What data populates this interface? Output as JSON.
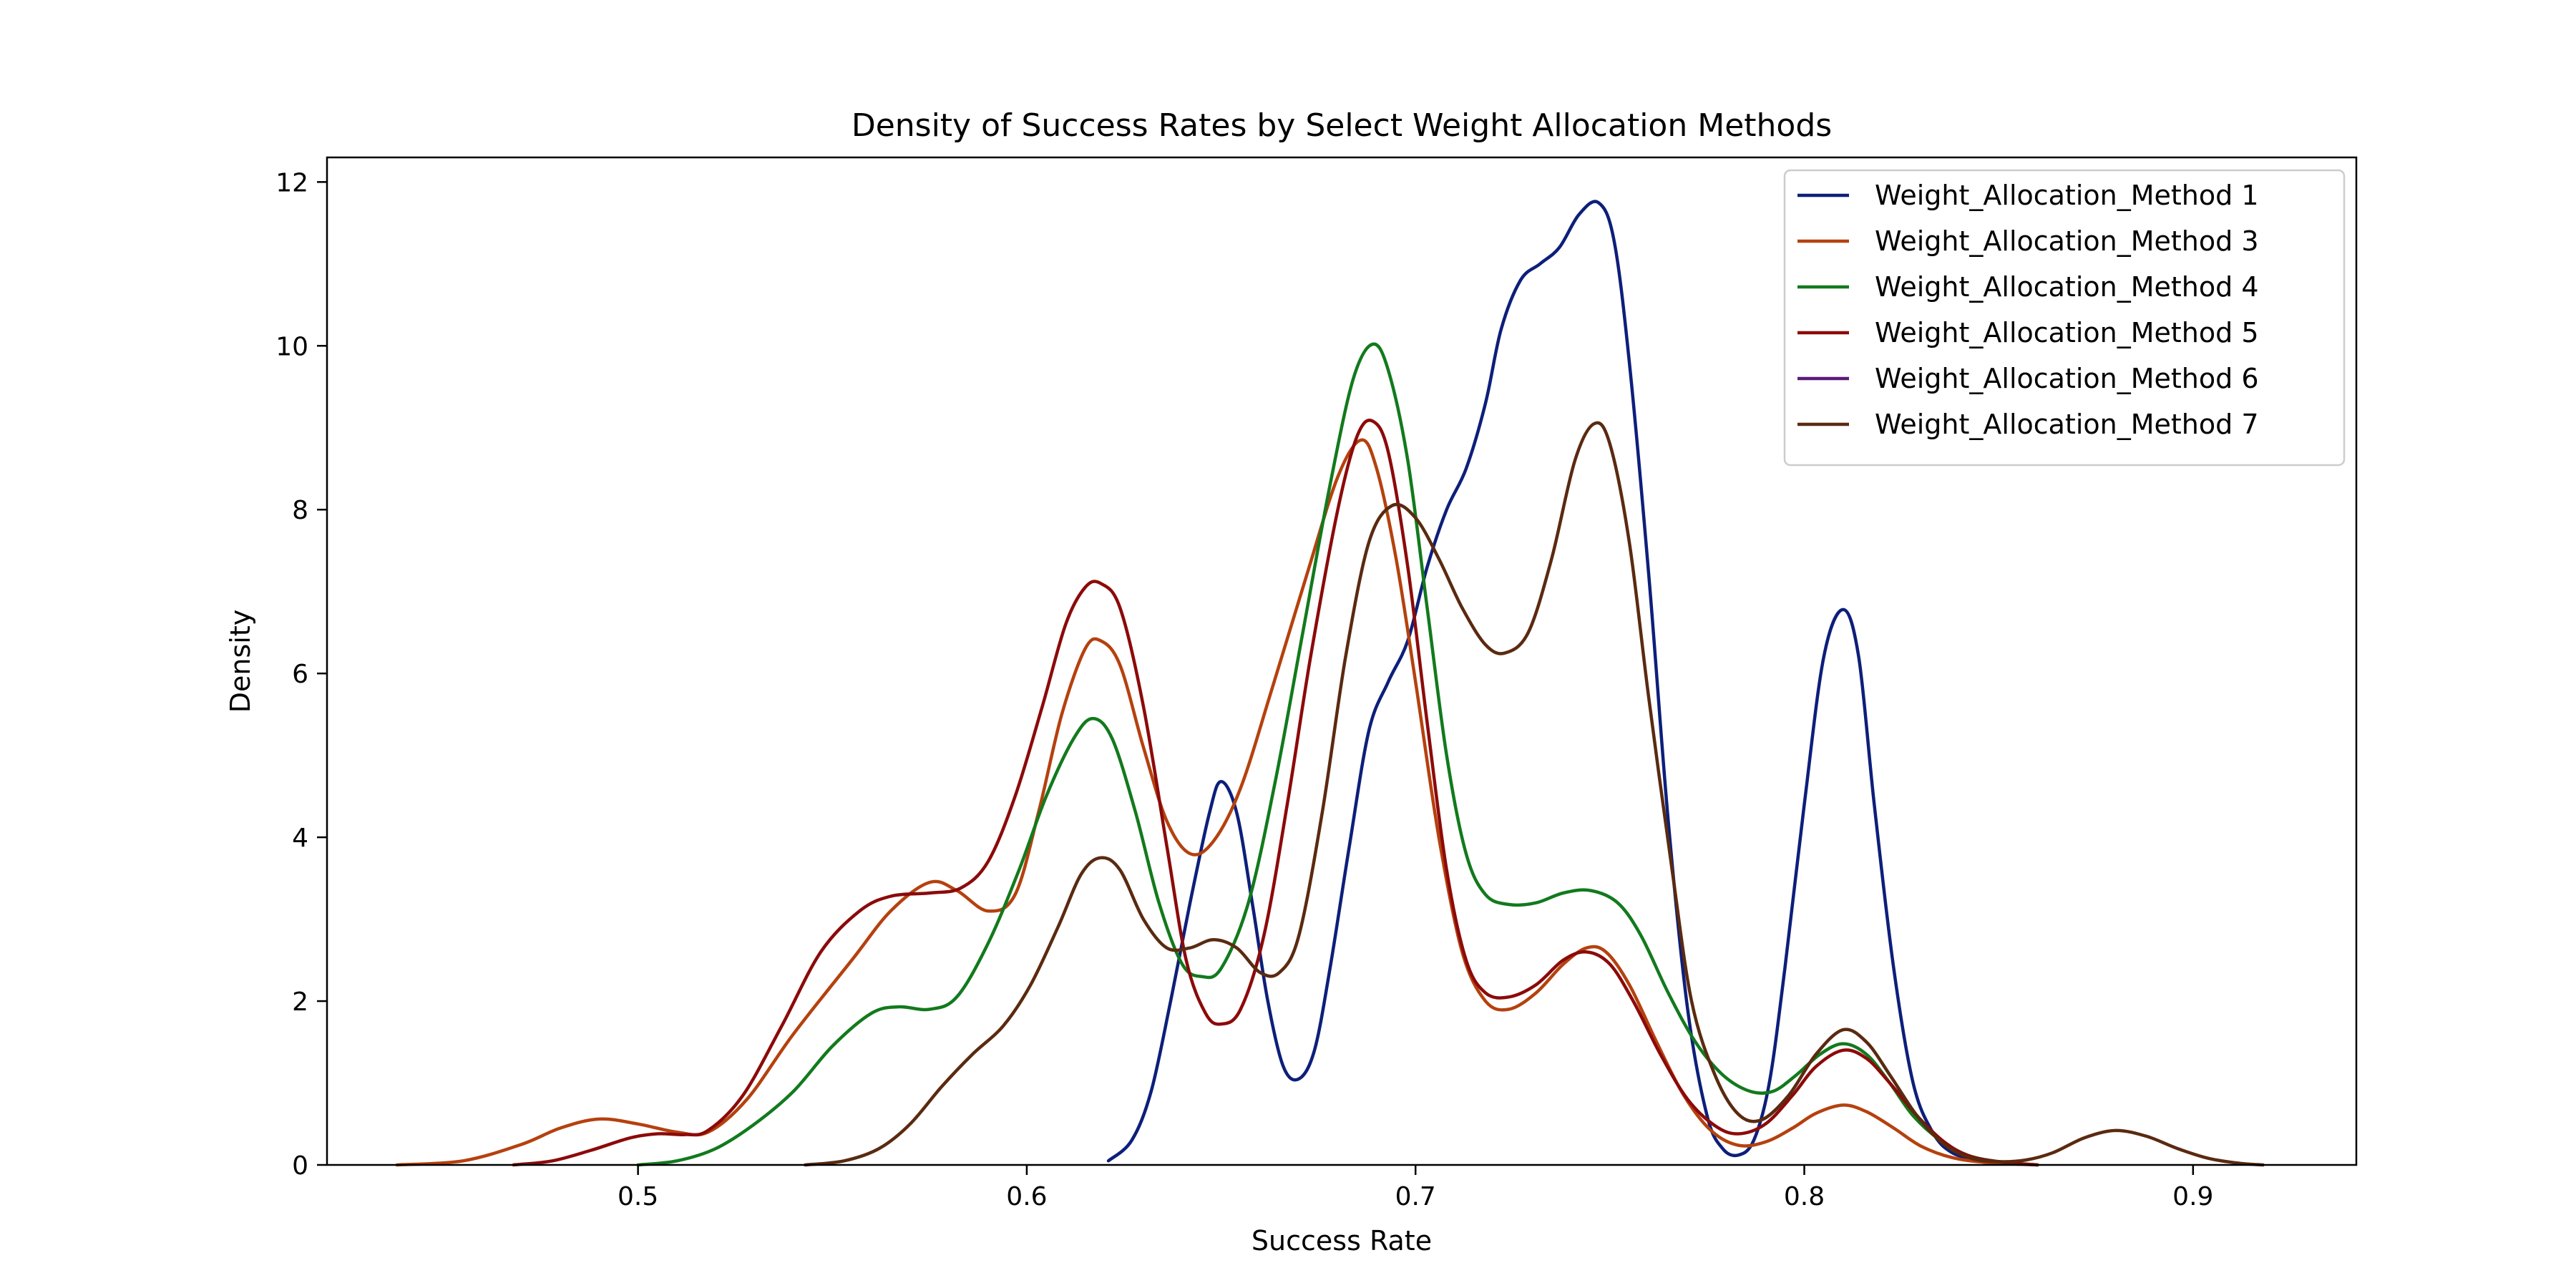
{
  "chart_data": {
    "type": "line",
    "title": "Density of Success Rates by Select Weight Allocation Methods",
    "xlabel": "Success Rate",
    "ylabel": "Density",
    "xlim": [
      0.42,
      0.942
    ],
    "ylim": [
      0,
      12.3
    ],
    "xticks": [
      0.5,
      0.6,
      0.7,
      0.8,
      0.9
    ],
    "yticks": [
      0,
      2,
      4,
      6,
      8,
      10,
      12
    ],
    "xtick_labels": [
      "0.5",
      "0.6",
      "0.7",
      "0.8",
      "0.9"
    ],
    "ytick_labels": [
      "0",
      "2",
      "4",
      "6",
      "8",
      "10",
      "12"
    ],
    "grid": false,
    "legend_position": "top-right",
    "series": [
      {
        "name": "Weight_Allocation_Method 1",
        "color": "#0d1f7a",
        "points": [
          [
            0.621,
            0.05
          ],
          [
            0.627,
            0.3
          ],
          [
            0.632,
            0.9
          ],
          [
            0.637,
            2.0
          ],
          [
            0.642,
            3.2
          ],
          [
            0.647,
            4.3
          ],
          [
            0.65,
            4.68
          ],
          [
            0.654,
            4.3
          ],
          [
            0.658,
            3.2
          ],
          [
            0.662,
            2.0
          ],
          [
            0.666,
            1.2
          ],
          [
            0.67,
            1.05
          ],
          [
            0.674,
            1.4
          ],
          [
            0.678,
            2.4
          ],
          [
            0.683,
            3.9
          ],
          [
            0.688,
            5.3
          ],
          [
            0.693,
            5.9
          ],
          [
            0.698,
            6.4
          ],
          [
            0.703,
            7.3
          ],
          [
            0.708,
            8.0
          ],
          [
            0.713,
            8.5
          ],
          [
            0.718,
            9.3
          ],
          [
            0.722,
            10.2
          ],
          [
            0.727,
            10.8
          ],
          [
            0.732,
            11.0
          ],
          [
            0.737,
            11.2
          ],
          [
            0.742,
            11.6
          ],
          [
            0.747,
            11.75
          ],
          [
            0.751,
            11.3
          ],
          [
            0.755,
            9.8
          ],
          [
            0.76,
            7.2
          ],
          [
            0.765,
            4.2
          ],
          [
            0.77,
            1.9
          ],
          [
            0.775,
            0.6
          ],
          [
            0.779,
            0.2
          ],
          [
            0.783,
            0.12
          ],
          [
            0.787,
            0.3
          ],
          [
            0.791,
            1.0
          ],
          [
            0.795,
            2.4
          ],
          [
            0.8,
            4.4
          ],
          [
            0.805,
            6.2
          ],
          [
            0.81,
            6.78
          ],
          [
            0.814,
            6.2
          ],
          [
            0.818,
            4.4
          ],
          [
            0.823,
            2.4
          ],
          [
            0.828,
            1.0
          ],
          [
            0.833,
            0.4
          ],
          [
            0.838,
            0.15
          ],
          [
            0.845,
            0.05
          ]
        ]
      },
      {
        "name": "Weight_Allocation_Method 3",
        "color": "#b5410e",
        "points": [
          [
            0.438,
            0.0
          ],
          [
            0.455,
            0.05
          ],
          [
            0.47,
            0.25
          ],
          [
            0.48,
            0.45
          ],
          [
            0.49,
            0.56
          ],
          [
            0.5,
            0.5
          ],
          [
            0.51,
            0.4
          ],
          [
            0.518,
            0.4
          ],
          [
            0.528,
            0.8
          ],
          [
            0.54,
            1.6
          ],
          [
            0.555,
            2.5
          ],
          [
            0.565,
            3.1
          ],
          [
            0.575,
            3.45
          ],
          [
            0.582,
            3.35
          ],
          [
            0.59,
            3.1
          ],
          [
            0.597,
            3.3
          ],
          [
            0.603,
            4.3
          ],
          [
            0.609,
            5.5
          ],
          [
            0.615,
            6.3
          ],
          [
            0.619,
            6.4
          ],
          [
            0.624,
            6.1
          ],
          [
            0.63,
            5.1
          ],
          [
            0.636,
            4.2
          ],
          [
            0.642,
            3.8
          ],
          [
            0.648,
            3.95
          ],
          [
            0.655,
            4.6
          ],
          [
            0.663,
            5.8
          ],
          [
            0.672,
            7.2
          ],
          [
            0.68,
            8.4
          ],
          [
            0.686,
            8.85
          ],
          [
            0.69,
            8.5
          ],
          [
            0.695,
            7.4
          ],
          [
            0.7,
            5.9
          ],
          [
            0.706,
            4.0
          ],
          [
            0.712,
            2.6
          ],
          [
            0.718,
            2.0
          ],
          [
            0.724,
            1.9
          ],
          [
            0.731,
            2.1
          ],
          [
            0.738,
            2.45
          ],
          [
            0.744,
            2.65
          ],
          [
            0.749,
            2.6
          ],
          [
            0.755,
            2.2
          ],
          [
            0.762,
            1.5
          ],
          [
            0.769,
            0.85
          ],
          [
            0.776,
            0.42
          ],
          [
            0.783,
            0.24
          ],
          [
            0.79,
            0.28
          ],
          [
            0.797,
            0.45
          ],
          [
            0.803,
            0.63
          ],
          [
            0.81,
            0.73
          ],
          [
            0.816,
            0.65
          ],
          [
            0.823,
            0.45
          ],
          [
            0.83,
            0.23
          ],
          [
            0.838,
            0.09
          ],
          [
            0.847,
            0.03
          ],
          [
            0.86,
            0.0
          ]
        ]
      },
      {
        "name": "Weight_Allocation_Method 4",
        "color": "#127a1d",
        "points": [
          [
            0.5,
            0.0
          ],
          [
            0.51,
            0.05
          ],
          [
            0.52,
            0.2
          ],
          [
            0.53,
            0.5
          ],
          [
            0.54,
            0.9
          ],
          [
            0.55,
            1.45
          ],
          [
            0.56,
            1.85
          ],
          [
            0.567,
            1.93
          ],
          [
            0.575,
            1.9
          ],
          [
            0.582,
            2.05
          ],
          [
            0.59,
            2.7
          ],
          [
            0.598,
            3.6
          ],
          [
            0.605,
            4.5
          ],
          [
            0.612,
            5.2
          ],
          [
            0.617,
            5.45
          ],
          [
            0.622,
            5.2
          ],
          [
            0.628,
            4.3
          ],
          [
            0.634,
            3.2
          ],
          [
            0.64,
            2.45
          ],
          [
            0.645,
            2.3
          ],
          [
            0.65,
            2.4
          ],
          [
            0.657,
            3.2
          ],
          [
            0.664,
            4.7
          ],
          [
            0.671,
            6.5
          ],
          [
            0.678,
            8.3
          ],
          [
            0.684,
            9.6
          ],
          [
            0.689,
            10.02
          ],
          [
            0.693,
            9.7
          ],
          [
            0.698,
            8.6
          ],
          [
            0.703,
            6.8
          ],
          [
            0.708,
            5.0
          ],
          [
            0.713,
            3.8
          ],
          [
            0.718,
            3.3
          ],
          [
            0.724,
            3.18
          ],
          [
            0.731,
            3.2
          ],
          [
            0.738,
            3.32
          ],
          [
            0.745,
            3.35
          ],
          [
            0.752,
            3.2
          ],
          [
            0.758,
            2.8
          ],
          [
            0.765,
            2.1
          ],
          [
            0.772,
            1.5
          ],
          [
            0.779,
            1.1
          ],
          [
            0.786,
            0.9
          ],
          [
            0.792,
            0.9
          ],
          [
            0.798,
            1.1
          ],
          [
            0.804,
            1.35
          ],
          [
            0.81,
            1.48
          ],
          [
            0.816,
            1.35
          ],
          [
            0.822,
            1.0
          ],
          [
            0.828,
            0.6
          ],
          [
            0.835,
            0.3
          ],
          [
            0.842,
            0.12
          ],
          [
            0.85,
            0.04
          ],
          [
            0.86,
            0.0
          ]
        ]
      },
      {
        "name": "Weight_Allocation_Method 5",
        "color": "#8c0a0a",
        "points": [
          [
            0.468,
            0.0
          ],
          [
            0.478,
            0.05
          ],
          [
            0.488,
            0.18
          ],
          [
            0.498,
            0.33
          ],
          [
            0.505,
            0.38
          ],
          [
            0.512,
            0.37
          ],
          [
            0.518,
            0.42
          ],
          [
            0.527,
            0.85
          ],
          [
            0.537,
            1.7
          ],
          [
            0.547,
            2.6
          ],
          [
            0.557,
            3.1
          ],
          [
            0.565,
            3.28
          ],
          [
            0.575,
            3.32
          ],
          [
            0.583,
            3.38
          ],
          [
            0.59,
            3.7
          ],
          [
            0.597,
            4.5
          ],
          [
            0.604,
            5.6
          ],
          [
            0.61,
            6.6
          ],
          [
            0.615,
            7.05
          ],
          [
            0.619,
            7.1
          ],
          [
            0.624,
            6.8
          ],
          [
            0.63,
            5.6
          ],
          [
            0.636,
            3.9
          ],
          [
            0.641,
            2.5
          ],
          [
            0.646,
            1.85
          ],
          [
            0.65,
            1.72
          ],
          [
            0.655,
            1.9
          ],
          [
            0.661,
            2.8
          ],
          [
            0.667,
            4.4
          ],
          [
            0.673,
            6.2
          ],
          [
            0.68,
            8.0
          ],
          [
            0.685,
            8.9
          ],
          [
            0.689,
            9.08
          ],
          [
            0.693,
            8.7
          ],
          [
            0.698,
            7.3
          ],
          [
            0.703,
            5.4
          ],
          [
            0.708,
            3.6
          ],
          [
            0.713,
            2.5
          ],
          [
            0.718,
            2.1
          ],
          [
            0.724,
            2.05
          ],
          [
            0.731,
            2.2
          ],
          [
            0.738,
            2.5
          ],
          [
            0.744,
            2.6
          ],
          [
            0.75,
            2.45
          ],
          [
            0.756,
            2.0
          ],
          [
            0.763,
            1.35
          ],
          [
            0.77,
            0.8
          ],
          [
            0.777,
            0.48
          ],
          [
            0.783,
            0.38
          ],
          [
            0.79,
            0.5
          ],
          [
            0.797,
            0.85
          ],
          [
            0.803,
            1.2
          ],
          [
            0.81,
            1.4
          ],
          [
            0.816,
            1.3
          ],
          [
            0.822,
            1.0
          ],
          [
            0.829,
            0.6
          ],
          [
            0.836,
            0.28
          ],
          [
            0.843,
            0.1
          ],
          [
            0.852,
            0.03
          ],
          [
            0.86,
            0.0
          ]
        ]
      },
      {
        "name": "Weight_Allocation_Method 6",
        "color": "#5b1a7a",
        "points": []
      },
      {
        "name": "Weight_Allocation_Method 7",
        "color": "#5a2a10",
        "points": [
          [
            0.543,
            0.0
          ],
          [
            0.553,
            0.05
          ],
          [
            0.562,
            0.2
          ],
          [
            0.57,
            0.5
          ],
          [
            0.578,
            0.95
          ],
          [
            0.586,
            1.35
          ],
          [
            0.594,
            1.7
          ],
          [
            0.601,
            2.2
          ],
          [
            0.608,
            2.9
          ],
          [
            0.614,
            3.55
          ],
          [
            0.619,
            3.75
          ],
          [
            0.624,
            3.6
          ],
          [
            0.63,
            3.0
          ],
          [
            0.636,
            2.65
          ],
          [
            0.642,
            2.65
          ],
          [
            0.648,
            2.75
          ],
          [
            0.654,
            2.65
          ],
          [
            0.66,
            2.35
          ],
          [
            0.665,
            2.35
          ],
          [
            0.67,
            2.8
          ],
          [
            0.676,
            4.3
          ],
          [
            0.682,
            6.2
          ],
          [
            0.688,
            7.6
          ],
          [
            0.694,
            8.05
          ],
          [
            0.7,
            7.9
          ],
          [
            0.706,
            7.4
          ],
          [
            0.712,
            6.8
          ],
          [
            0.718,
            6.35
          ],
          [
            0.723,
            6.25
          ],
          [
            0.729,
            6.5
          ],
          [
            0.735,
            7.4
          ],
          [
            0.741,
            8.6
          ],
          [
            0.746,
            9.05
          ],
          [
            0.75,
            8.8
          ],
          [
            0.755,
            7.6
          ],
          [
            0.76,
            5.7
          ],
          [
            0.766,
            3.6
          ],
          [
            0.771,
            2.0
          ],
          [
            0.777,
            1.1
          ],
          [
            0.783,
            0.62
          ],
          [
            0.789,
            0.55
          ],
          [
            0.796,
            0.85
          ],
          [
            0.803,
            1.35
          ],
          [
            0.81,
            1.65
          ],
          [
            0.816,
            1.5
          ],
          [
            0.822,
            1.1
          ],
          [
            0.829,
            0.6
          ],
          [
            0.836,
            0.25
          ],
          [
            0.843,
            0.08
          ],
          [
            0.85,
            0.04
          ],
          [
            0.857,
            0.06
          ],
          [
            0.864,
            0.15
          ],
          [
            0.872,
            0.33
          ],
          [
            0.88,
            0.42
          ],
          [
            0.888,
            0.35
          ],
          [
            0.896,
            0.2
          ],
          [
            0.904,
            0.08
          ],
          [
            0.912,
            0.02
          ],
          [
            0.918,
            0.0
          ]
        ]
      }
    ]
  }
}
